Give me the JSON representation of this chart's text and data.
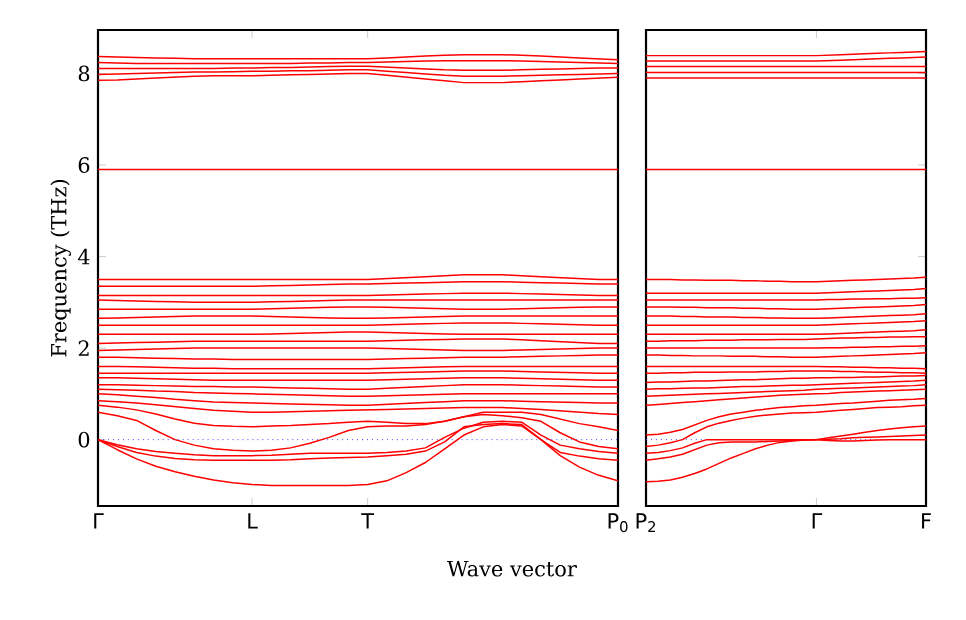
{
  "chart_data": [
    {
      "type": "line",
      "xlabel": "Wave vector",
      "ylabel": "Frequency (THz)",
      "ylim": [
        -1.45,
        8.95
      ],
      "categories": [
        "Γ",
        null,
        null,
        null,
        null,
        null,
        null,
        null,
        "L",
        null,
        null,
        null,
        null,
        null,
        "T",
        null,
        null,
        null,
        null,
        null,
        null,
        null,
        null,
        null,
        null,
        null,
        null,
        "P$_{0}$"
      ],
      "yticks": [
        0,
        2,
        4,
        6,
        8
      ],
      "ref_lines": [
        {
          "axis": "y",
          "value": 0,
          "color": "#4444ff",
          "line_style": "dotted"
        }
      ],
      "series": [
        {
          "color": "#ff0000",
          "values": [
            0,
            -0.22,
            -0.42,
            -0.58,
            -0.7,
            -0.8,
            -0.88,
            -0.94,
            -0.98,
            -1.0,
            -1.0,
            -1.0,
            -1.0,
            -1.0,
            -0.98,
            -0.9,
            -0.72,
            -0.5,
            -0.2,
            0.1,
            0.28,
            0.33,
            0.3,
            0.0,
            -0.35,
            -0.6,
            -0.78,
            -0.9
          ]
        },
        {
          "color": "#ff0000",
          "values": [
            0,
            -0.15,
            -0.28,
            -0.36,
            -0.41,
            -0.44,
            -0.45,
            -0.45,
            -0.45,
            -0.45,
            -0.44,
            -0.42,
            -0.4,
            -0.39,
            -0.38,
            -0.35,
            -0.32,
            -0.25,
            -0.05,
            0.28,
            0.33,
            0.35,
            0.33,
            0.0,
            -0.28,
            -0.36,
            -0.42,
            -0.45
          ]
        },
        {
          "color": "#ff0000",
          "values": [
            0,
            -0.11,
            -0.2,
            -0.26,
            -0.3,
            -0.33,
            -0.35,
            -0.35,
            -0.35,
            -0.34,
            -0.32,
            -0.3,
            -0.3,
            -0.3,
            -0.3,
            -0.28,
            -0.25,
            -0.18,
            0.05,
            0.25,
            0.38,
            0.4,
            0.38,
            0.1,
            -0.12,
            -0.2,
            -0.26,
            -0.3
          ]
        },
        {
          "color": "#ff0000",
          "values": [
            0.6,
            0.52,
            0.42,
            0.2,
            0.0,
            -0.12,
            -0.2,
            -0.23,
            -0.25,
            -0.23,
            -0.18,
            -0.08,
            0.05,
            0.2,
            0.28,
            0.3,
            0.3,
            0.33,
            0.4,
            0.5,
            0.55,
            0.52,
            0.48,
            0.4,
            0.15,
            -0.05,
            -0.15,
            -0.2
          ]
        },
        {
          "color": "#ff0000",
          "values": [
            0.75,
            0.71,
            0.65,
            0.56,
            0.45,
            0.36,
            0.31,
            0.29,
            0.28,
            0.3,
            0.31,
            0.33,
            0.35,
            0.38,
            0.4,
            0.38,
            0.35,
            0.35,
            0.4,
            0.5,
            0.6,
            0.6,
            0.6,
            0.55,
            0.45,
            0.35,
            0.28,
            0.2
          ]
        },
        {
          "color": "#ff0000",
          "values": [
            0.85,
            0.83,
            0.8,
            0.76,
            0.72,
            0.68,
            0.64,
            0.62,
            0.6,
            0.6,
            0.61,
            0.62,
            0.63,
            0.64,
            0.65,
            0.66,
            0.67,
            0.68,
            0.69,
            0.7,
            0.7,
            0.7,
            0.68,
            0.66,
            0.63,
            0.6,
            0.57,
            0.55
          ]
        },
        {
          "color": "#ff0000",
          "values": [
            1.0,
            0.98,
            0.95,
            0.92,
            0.88,
            0.85,
            0.82,
            0.81,
            0.8,
            0.79,
            0.78,
            0.77,
            0.76,
            0.75,
            0.75,
            0.77,
            0.79,
            0.81,
            0.83,
            0.85,
            0.85,
            0.85,
            0.84,
            0.83,
            0.82,
            0.81,
            0.8,
            0.8
          ]
        },
        {
          "color": "#ff0000",
          "values": [
            1.1,
            1.09,
            1.08,
            1.06,
            1.05,
            1.03,
            1.02,
            1.01,
            1.0,
            0.99,
            0.98,
            0.97,
            0.96,
            0.95,
            0.95,
            0.96,
            0.97,
            0.98,
            0.99,
            1.0,
            1.0,
            1.0,
            1.0,
            1.0,
            1.0,
            1.0,
            1.0,
            1.0
          ]
        },
        {
          "color": "#ff0000",
          "values": [
            1.2,
            1.2,
            1.19,
            1.18,
            1.17,
            1.16,
            1.16,
            1.15,
            1.15,
            1.14,
            1.13,
            1.12,
            1.11,
            1.1,
            1.1,
            1.12,
            1.14,
            1.16,
            1.18,
            1.2,
            1.2,
            1.2,
            1.19,
            1.18,
            1.17,
            1.16,
            1.15,
            1.15
          ]
        },
        {
          "color": "#ff0000",
          "values": [
            1.35,
            1.35,
            1.34,
            1.33,
            1.32,
            1.31,
            1.3,
            1.3,
            1.3,
            1.3,
            1.3,
            1.3,
            1.3,
            1.3,
            1.3,
            1.31,
            1.32,
            1.33,
            1.34,
            1.35,
            1.35,
            1.35,
            1.34,
            1.33,
            1.32,
            1.31,
            1.3,
            1.3
          ]
        },
        {
          "color": "#ff0000",
          "values": [
            1.45,
            1.45,
            1.45,
            1.45,
            1.45,
            1.45,
            1.45,
            1.45,
            1.45,
            1.45,
            1.45,
            1.45,
            1.45,
            1.45,
            1.45,
            1.46,
            1.47,
            1.48,
            1.49,
            1.5,
            1.5,
            1.5,
            1.49,
            1.48,
            1.47,
            1.46,
            1.45,
            1.45
          ]
        },
        {
          "color": "#ff0000",
          "values": [
            1.6,
            1.6,
            1.59,
            1.58,
            1.57,
            1.56,
            1.56,
            1.55,
            1.55,
            1.55,
            1.55,
            1.55,
            1.55,
            1.55,
            1.55,
            1.56,
            1.57,
            1.58,
            1.59,
            1.6,
            1.6,
            1.6,
            1.6,
            1.6,
            1.6,
            1.6,
            1.6,
            1.6
          ]
        },
        {
          "color": "#ff0000",
          "values": [
            1.8,
            1.8,
            1.79,
            1.78,
            1.77,
            1.76,
            1.76,
            1.75,
            1.75,
            1.75,
            1.75,
            1.75,
            1.75,
            1.75,
            1.75,
            1.76,
            1.77,
            1.78,
            1.79,
            1.8,
            1.8,
            1.8,
            1.81,
            1.82,
            1.83,
            1.84,
            1.85,
            1.85
          ]
        },
        {
          "color": "#ff0000",
          "values": [
            1.95,
            1.96,
            1.97,
            1.98,
            1.99,
            2.0,
            2.0,
            2.0,
            2.0,
            2.0,
            2.0,
            2.0,
            2.0,
            2.0,
            2.0,
            1.99,
            1.98,
            1.97,
            1.96,
            1.95,
            1.95,
            1.95,
            1.96,
            1.97,
            1.98,
            1.99,
            2.0,
            2.0
          ]
        },
        {
          "color": "#ff0000",
          "values": [
            2.1,
            2.11,
            2.12,
            2.13,
            2.14,
            2.15,
            2.15,
            2.15,
            2.15,
            2.15,
            2.15,
            2.15,
            2.15,
            2.15,
            2.15,
            2.16,
            2.17,
            2.18,
            2.19,
            2.2,
            2.2,
            2.2,
            2.18,
            2.16,
            2.14,
            2.12,
            2.1,
            2.1
          ]
        },
        {
          "color": "#ff0000",
          "values": [
            2.3,
            2.3,
            2.3,
            2.3,
            2.3,
            2.3,
            2.3,
            2.3,
            2.3,
            2.31,
            2.32,
            2.33,
            2.34,
            2.35,
            2.35,
            2.34,
            2.33,
            2.32,
            2.31,
            2.3,
            2.3,
            2.3,
            2.3,
            2.3,
            2.3,
            2.3,
            2.3,
            2.3
          ]
        },
        {
          "color": "#ff0000",
          "values": [
            2.5,
            2.5,
            2.5,
            2.5,
            2.5,
            2.5,
            2.5,
            2.5,
            2.5,
            2.5,
            2.5,
            2.5,
            2.5,
            2.5,
            2.5,
            2.51,
            2.52,
            2.53,
            2.54,
            2.55,
            2.55,
            2.55,
            2.54,
            2.53,
            2.52,
            2.51,
            2.5,
            2.5
          ]
        },
        {
          "color": "#ff0000",
          "values": [
            2.65,
            2.66,
            2.67,
            2.68,
            2.69,
            2.7,
            2.7,
            2.7,
            2.7,
            2.69,
            2.68,
            2.67,
            2.66,
            2.65,
            2.65,
            2.66,
            2.67,
            2.68,
            2.69,
            2.7,
            2.7,
            2.7,
            2.7,
            2.7,
            2.7,
            2.7,
            2.7,
            2.7
          ]
        },
        {
          "color": "#ff0000",
          "values": [
            2.85,
            2.85,
            2.85,
            2.85,
            2.85,
            2.85,
            2.85,
            2.85,
            2.85,
            2.86,
            2.87,
            2.88,
            2.89,
            2.9,
            2.9,
            2.89,
            2.88,
            2.87,
            2.86,
            2.85,
            2.85,
            2.85,
            2.86,
            2.87,
            2.88,
            2.89,
            2.9,
            2.9
          ]
        },
        {
          "color": "#ff0000",
          "values": [
            3.05,
            3.04,
            3.03,
            3.02,
            3.01,
            3.0,
            3.0,
            3.0,
            3.0,
            3.01,
            3.02,
            3.03,
            3.04,
            3.05,
            3.05,
            3.05,
            3.05,
            3.05,
            3.05,
            3.05,
            3.05,
            3.05,
            3.05,
            3.05,
            3.05,
            3.05,
            3.05,
            3.05
          ]
        },
        {
          "color": "#ff0000",
          "values": [
            3.15,
            3.15,
            3.15,
            3.15,
            3.15,
            3.15,
            3.15,
            3.15,
            3.15,
            3.15,
            3.15,
            3.15,
            3.15,
            3.15,
            3.15,
            3.16,
            3.17,
            3.18,
            3.19,
            3.2,
            3.2,
            3.2,
            3.19,
            3.18,
            3.17,
            3.16,
            3.15,
            3.15
          ]
        },
        {
          "color": "#ff0000",
          "values": [
            3.35,
            3.35,
            3.35,
            3.35,
            3.35,
            3.35,
            3.35,
            3.35,
            3.35,
            3.36,
            3.37,
            3.38,
            3.39,
            3.4,
            3.4,
            3.41,
            3.42,
            3.43,
            3.44,
            3.45,
            3.45,
            3.45,
            3.44,
            3.43,
            3.42,
            3.41,
            3.4,
            3.4
          ]
        },
        {
          "color": "#ff0000",
          "values": [
            3.5,
            3.5,
            3.5,
            3.5,
            3.5,
            3.5,
            3.5,
            3.5,
            3.5,
            3.5,
            3.5,
            3.5,
            3.5,
            3.5,
            3.5,
            3.52,
            3.54,
            3.56,
            3.58,
            3.6,
            3.6,
            3.6,
            3.58,
            3.56,
            3.54,
            3.52,
            3.5,
            3.5
          ]
        },
        {
          "color": "#ff0000",
          "values": [
            5.9,
            5.9,
            5.9,
            5.9,
            5.9,
            5.9,
            5.9,
            5.9,
            5.9,
            5.9,
            5.9,
            5.9,
            5.9,
            5.9,
            5.9,
            5.9,
            5.9,
            5.9,
            5.9,
            5.9,
            5.9,
            5.9,
            5.9,
            5.9,
            5.9,
            5.9,
            5.9,
            5.9
          ]
        },
        {
          "color": "#ff0000",
          "values": [
            7.85,
            7.86,
            7.88,
            7.9,
            7.92,
            7.94,
            7.95,
            7.95,
            7.95,
            7.96,
            7.97,
            7.98,
            7.99,
            8.0,
            8.0,
            7.96,
            7.92,
            7.88,
            7.84,
            7.8,
            7.8,
            7.8,
            7.82,
            7.84,
            7.86,
            7.88,
            7.9,
            7.92
          ]
        },
        {
          "color": "#ff0000",
          "values": [
            7.98,
            7.99,
            8.0,
            8.01,
            8.02,
            8.03,
            8.03,
            8.04,
            8.05,
            8.05,
            8.06,
            8.06,
            8.07,
            8.08,
            8.08,
            8.05,
            8.02,
            7.99,
            7.96,
            7.94,
            7.94,
            7.94,
            7.95,
            7.96,
            7.97,
            7.98,
            7.99,
            8.0
          ]
        },
        {
          "color": "#ff0000",
          "values": [
            8.11,
            8.11,
            8.11,
            8.11,
            8.11,
            8.11,
            8.11,
            8.12,
            8.12,
            8.13,
            8.13,
            8.14,
            8.15,
            8.16,
            8.16,
            8.14,
            8.12,
            8.1,
            8.08,
            8.07,
            8.07,
            8.07,
            8.08,
            8.09,
            8.1,
            8.11,
            8.12,
            8.12
          ]
        },
        {
          "color": "#ff0000",
          "values": [
            8.24,
            8.23,
            8.22,
            8.22,
            8.22,
            8.22,
            8.22,
            8.22,
            8.22,
            8.22,
            8.22,
            8.23,
            8.23,
            8.24,
            8.24,
            8.25,
            8.26,
            8.27,
            8.28,
            8.28,
            8.28,
            8.28,
            8.27,
            8.26,
            8.25,
            8.24,
            8.23,
            8.22
          ]
        },
        {
          "color": "#ff0000",
          "values": [
            8.37,
            8.36,
            8.35,
            8.34,
            8.33,
            8.32,
            8.32,
            8.32,
            8.32,
            8.32,
            8.32,
            8.32,
            8.32,
            8.32,
            8.32,
            8.34,
            8.36,
            8.38,
            8.4,
            8.41,
            8.41,
            8.41,
            8.4,
            8.38,
            8.36,
            8.34,
            8.32,
            8.3
          ]
        }
      ]
    },
    {
      "type": "line",
      "ylim": [
        -1.45,
        8.95
      ],
      "tick_labels": "x",
      "categories": [
        "P$_{2}$",
        null,
        null,
        null,
        null,
        null,
        null,
        null,
        null,
        null,
        null,
        null,
        null,
        null,
        "Γ",
        null,
        null,
        null,
        null,
        null,
        null,
        null,
        null,
        "F"
      ],
      "yticks": [
        0,
        2,
        4,
        6,
        8
      ],
      "ref_lines": [
        {
          "axis": "y",
          "value": 0,
          "color": "#4444ff",
          "line_style": "dotted"
        }
      ],
      "series": [
        {
          "color": "#ff0000",
          "values": [
            -0.92,
            -0.91,
            -0.88,
            -0.82,
            -0.74,
            -0.64,
            -0.52,
            -0.4,
            -0.3,
            -0.2,
            -0.12,
            -0.06,
            -0.03,
            -0.01,
            0,
            0.04,
            0.08,
            0.12,
            0.16,
            0.2,
            0.23,
            0.26,
            0.28,
            0.3
          ]
        },
        {
          "color": "#ff0000",
          "values": [
            -0.45,
            -0.42,
            -0.38,
            -0.32,
            -0.22,
            -0.12,
            -0.07,
            -0.05,
            -0.05,
            -0.05,
            -0.04,
            -0.03,
            -0.02,
            -0.01,
            0,
            0.01,
            0.02,
            0.04,
            0.05,
            0.06,
            0.07,
            0.08,
            0.09,
            0.1
          ]
        },
        {
          "color": "#ff0000",
          "values": [
            -0.3,
            -0.28,
            -0.24,
            -0.18,
            -0.08,
            0.0,
            0.0,
            0.0,
            0.0,
            0.0,
            0.0,
            0.0,
            0.0,
            0.0,
            0,
            -0.02,
            -0.03,
            -0.03,
            -0.02,
            -0.01,
            0.0,
            0.0,
            0.0,
            0.0
          ]
        },
        {
          "color": "#ff0000",
          "values": [
            -0.15,
            -0.12,
            -0.07,
            0.0,
            0.15,
            0.28,
            0.36,
            0.42,
            0.47,
            0.51,
            0.54,
            0.56,
            0.58,
            0.59,
            0.6,
            0.62,
            0.64,
            0.66,
            0.68,
            0.7,
            0.71,
            0.72,
            0.74,
            0.75
          ]
        },
        {
          "color": "#ff0000",
          "values": [
            0.1,
            0.12,
            0.16,
            0.22,
            0.32,
            0.42,
            0.5,
            0.56,
            0.6,
            0.64,
            0.67,
            0.7,
            0.72,
            0.74,
            0.75,
            0.77,
            0.79,
            0.8,
            0.82,
            0.84,
            0.86,
            0.87,
            0.88,
            0.9
          ]
        },
        {
          "color": "#ff0000",
          "values": [
            0.75,
            0.77,
            0.79,
            0.81,
            0.83,
            0.85,
            0.87,
            0.89,
            0.91,
            0.93,
            0.95,
            0.97,
            0.98,
            0.99,
            1.0,
            1.01,
            1.03,
            1.04,
            1.05,
            1.06,
            1.07,
            1.08,
            1.09,
            1.1
          ]
        },
        {
          "color": "#ff0000",
          "values": [
            0.95,
            0.96,
            0.97,
            0.98,
            0.99,
            1.0,
            1.01,
            1.02,
            1.03,
            1.04,
            1.05,
            1.06,
            1.07,
            1.08,
            1.1,
            1.11,
            1.12,
            1.13,
            1.14,
            1.15,
            1.16,
            1.17,
            1.18,
            1.2
          ]
        },
        {
          "color": "#ff0000",
          "values": [
            1.1,
            1.11,
            1.11,
            1.12,
            1.13,
            1.13,
            1.14,
            1.15,
            1.16,
            1.16,
            1.17,
            1.18,
            1.19,
            1.19,
            1.2,
            1.21,
            1.22,
            1.23,
            1.24,
            1.25,
            1.26,
            1.27,
            1.28,
            1.3
          ]
        },
        {
          "color": "#ff0000",
          "values": [
            1.25,
            1.26,
            1.26,
            1.27,
            1.28,
            1.28,
            1.29,
            1.3,
            1.31,
            1.31,
            1.32,
            1.33,
            1.34,
            1.34,
            1.35,
            1.35,
            1.36,
            1.36,
            1.37,
            1.37,
            1.38,
            1.39,
            1.39,
            1.4
          ]
        },
        {
          "color": "#ff0000",
          "values": [
            1.45,
            1.45,
            1.46,
            1.46,
            1.47,
            1.47,
            1.47,
            1.48,
            1.48,
            1.48,
            1.49,
            1.49,
            1.5,
            1.5,
            1.5,
            1.5,
            1.49,
            1.49,
            1.48,
            1.47,
            1.47,
            1.46,
            1.46,
            1.45
          ]
        },
        {
          "color": "#ff0000",
          "values": [
            1.6,
            1.6,
            1.6,
            1.6,
            1.6,
            1.6,
            1.6,
            1.6,
            1.6,
            1.6,
            1.6,
            1.6,
            1.6,
            1.6,
            1.6,
            1.59,
            1.59,
            1.58,
            1.58,
            1.57,
            1.57,
            1.56,
            1.56,
            1.55
          ]
        },
        {
          "color": "#ff0000",
          "values": [
            1.85,
            1.85,
            1.84,
            1.84,
            1.83,
            1.83,
            1.83,
            1.82,
            1.82,
            1.82,
            1.81,
            1.81,
            1.8,
            1.8,
            1.8,
            1.81,
            1.82,
            1.83,
            1.84,
            1.85,
            1.86,
            1.87,
            1.88,
            1.9
          ]
        },
        {
          "color": "#ff0000",
          "values": [
            2.0,
            2.0,
            2.0,
            2.0,
            2.0,
            2.0,
            2.0,
            2.0,
            2.0,
            2.0,
            2.0,
            2.0,
            2.0,
            2.0,
            2.0,
            2.01,
            2.01,
            2.02,
            2.02,
            2.03,
            2.03,
            2.04,
            2.04,
            2.05
          ]
        },
        {
          "color": "#ff0000",
          "values": [
            2.15,
            2.15,
            2.16,
            2.16,
            2.16,
            2.17,
            2.17,
            2.17,
            2.18,
            2.18,
            2.18,
            2.19,
            2.19,
            2.19,
            2.2,
            2.21,
            2.22,
            2.22,
            2.23,
            2.23,
            2.24,
            2.24,
            2.25,
            2.25
          ]
        },
        {
          "color": "#ff0000",
          "values": [
            2.3,
            2.3,
            2.3,
            2.3,
            2.3,
            2.3,
            2.3,
            2.3,
            2.3,
            2.3,
            2.3,
            2.3,
            2.3,
            2.3,
            2.3,
            2.31,
            2.32,
            2.33,
            2.34,
            2.35,
            2.36,
            2.37,
            2.38,
            2.4
          ]
        },
        {
          "color": "#ff0000",
          "values": [
            2.5,
            2.5,
            2.5,
            2.5,
            2.5,
            2.5,
            2.5,
            2.5,
            2.5,
            2.5,
            2.5,
            2.5,
            2.5,
            2.5,
            2.5,
            2.51,
            2.52,
            2.53,
            2.54,
            2.55,
            2.56,
            2.57,
            2.58,
            2.6
          ]
        },
        {
          "color": "#ff0000",
          "values": [
            2.7,
            2.7,
            2.7,
            2.69,
            2.69,
            2.68,
            2.68,
            2.68,
            2.67,
            2.67,
            2.66,
            2.66,
            2.65,
            2.65,
            2.65,
            2.66,
            2.67,
            2.68,
            2.69,
            2.7,
            2.71,
            2.72,
            2.73,
            2.75
          ]
        },
        {
          "color": "#ff0000",
          "values": [
            2.9,
            2.9,
            2.9,
            2.89,
            2.89,
            2.88,
            2.88,
            2.88,
            2.87,
            2.87,
            2.86,
            2.86,
            2.85,
            2.85,
            2.85,
            2.86,
            2.87,
            2.88,
            2.89,
            2.9,
            2.91,
            2.92,
            2.93,
            2.95
          ]
        },
        {
          "color": "#ff0000",
          "values": [
            3.05,
            3.05,
            3.05,
            3.05,
            3.05,
            3.05,
            3.05,
            3.05,
            3.05,
            3.05,
            3.05,
            3.05,
            3.05,
            3.05,
            3.05,
            3.06,
            3.06,
            3.07,
            3.07,
            3.08,
            3.08,
            3.09,
            3.09,
            3.1
          ]
        },
        {
          "color": "#ff0000",
          "values": [
            3.2,
            3.2,
            3.2,
            3.2,
            3.2,
            3.2,
            3.2,
            3.2,
            3.2,
            3.2,
            3.2,
            3.2,
            3.2,
            3.2,
            3.2,
            3.21,
            3.22,
            3.23,
            3.24,
            3.25,
            3.26,
            3.27,
            3.28,
            3.3
          ]
        },
        {
          "color": "#ff0000",
          "values": [
            3.5,
            3.5,
            3.5,
            3.49,
            3.49,
            3.48,
            3.48,
            3.48,
            3.47,
            3.47,
            3.46,
            3.46,
            3.45,
            3.45,
            3.45,
            3.46,
            3.47,
            3.48,
            3.49,
            3.5,
            3.51,
            3.52,
            3.53,
            3.55
          ]
        },
        {
          "color": "#ff0000",
          "values": [
            5.9,
            5.9,
            5.9,
            5.9,
            5.9,
            5.9,
            5.9,
            5.9,
            5.9,
            5.9,
            5.9,
            5.9,
            5.9,
            5.9,
            5.9,
            5.9,
            5.9,
            5.9,
            5.9,
            5.9,
            5.9,
            5.9,
            5.9,
            5.9
          ]
        },
        {
          "color": "#ff0000",
          "values": [
            7.9,
            7.9,
            7.9,
            7.9,
            7.9,
            7.9,
            7.9,
            7.9,
            7.9,
            7.9,
            7.9,
            7.9,
            7.9,
            7.9,
            7.9,
            7.9,
            7.9,
            7.9,
            7.9,
            7.9,
            7.9,
            7.9,
            7.9,
            7.9
          ]
        },
        {
          "color": "#ff0000",
          "values": [
            8.02,
            8.02,
            8.02,
            8.02,
            8.02,
            8.02,
            8.02,
            8.02,
            8.02,
            8.02,
            8.02,
            8.02,
            8.02,
            8.02,
            8.02,
            8.02,
            8.02,
            8.02,
            8.02,
            8.02,
            8.02,
            8.02,
            8.02,
            8.02
          ]
        },
        {
          "color": "#ff0000",
          "values": [
            8.15,
            8.15,
            8.15,
            8.15,
            8.15,
            8.15,
            8.15,
            8.15,
            8.15,
            8.15,
            8.15,
            8.15,
            8.15,
            8.15,
            8.15,
            8.15,
            8.15,
            8.15,
            8.15,
            8.15,
            8.15,
            8.15,
            8.15,
            8.15
          ]
        },
        {
          "color": "#ff0000",
          "values": [
            8.27,
            8.27,
            8.27,
            8.27,
            8.27,
            8.27,
            8.27,
            8.27,
            8.27,
            8.27,
            8.27,
            8.27,
            8.27,
            8.27,
            8.27,
            8.28,
            8.29,
            8.3,
            8.31,
            8.32,
            8.33,
            8.34,
            8.35,
            8.36
          ]
        },
        {
          "color": "#ff0000",
          "values": [
            8.39,
            8.39,
            8.39,
            8.39,
            8.39,
            8.39,
            8.39,
            8.39,
            8.39,
            8.39,
            8.39,
            8.39,
            8.39,
            8.39,
            8.39,
            8.4,
            8.41,
            8.42,
            8.43,
            8.44,
            8.45,
            8.46,
            8.47,
            8.48
          ]
        }
      ]
    }
  ]
}
